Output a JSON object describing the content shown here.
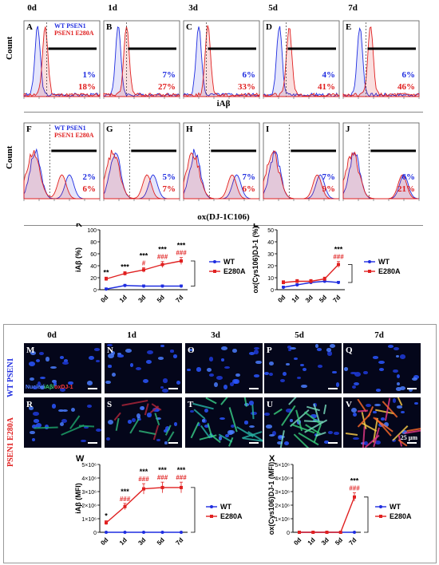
{
  "day_labels": [
    "0d",
    "1d",
    "3d",
    "5d",
    "7d"
  ],
  "flow_row1": {
    "panel_letters": [
      "A",
      "B",
      "C",
      "D",
      "E"
    ],
    "legend_wt": "WT PSEN1",
    "legend_mut": "PSEN1 E280A",
    "y_label": "Count",
    "x_label": "iAβ",
    "blue_pct": [
      "1%",
      "7%",
      "6%",
      "4%",
      "6%"
    ],
    "red_pct": [
      "18%",
      "27%",
      "33%",
      "41%",
      "46%"
    ]
  },
  "flow_row2": {
    "panel_letters": [
      "F",
      "G",
      "H",
      "I",
      "J"
    ],
    "legend_wt": "WT PSEN1",
    "legend_mut": "PSEN1 E280A",
    "y_label": "Count",
    "x_label": "ox(DJ-1C106)",
    "blue_pct": [
      "2%",
      "5%",
      "7%",
      "7%",
      "6%"
    ],
    "red_pct": [
      "6%",
      "7%",
      "6%",
      "9%",
      "21%"
    ]
  },
  "colors": {
    "wt": "#1f2de0",
    "mut": "#e02020"
  },
  "chart_data": [
    {
      "type": "line",
      "panel": "K",
      "categories": [
        "0d",
        "1d",
        "3d",
        "5d",
        "7d"
      ],
      "ylabel": "iAβ (%)",
      "ylim": [
        0,
        100
      ],
      "yticks": [
        "0",
        "20",
        "40",
        "60",
        "80",
        "100"
      ],
      "series": [
        {
          "name": "WT",
          "values": [
            1,
            7,
            6,
            6,
            6
          ]
        },
        {
          "name": "E280A",
          "values": [
            18,
            27,
            33,
            42,
            48
          ]
        }
      ],
      "annotations": {
        "stars": [
          "**",
          "***",
          "***",
          "***",
          "***"
        ],
        "hashes": [
          "",
          "",
          "#",
          "###",
          "###"
        ]
      }
    },
    {
      "type": "line",
      "panel": "L",
      "categories": [
        "0d",
        "1d",
        "3d",
        "5d",
        "7d"
      ],
      "ylabel": "ox(Cys106)DJ-1 (%)",
      "ylim": [
        0,
        50
      ],
      "yticks": [
        "0",
        "10",
        "20",
        "30",
        "40",
        "50"
      ],
      "series": [
        {
          "name": "WT",
          "values": [
            2,
            4,
            6,
            7,
            6
          ]
        },
        {
          "name": "E280A",
          "values": [
            6,
            7,
            7,
            9,
            21
          ]
        }
      ],
      "annotations": {
        "stars": [
          "",
          "",
          "",
          "",
          "***"
        ],
        "hashes": [
          "",
          "",
          "",
          "",
          "###"
        ]
      }
    },
    {
      "type": "line",
      "panel": "W",
      "categories": [
        "0d",
        "1d",
        "3d",
        "5d",
        "7d"
      ],
      "ylabel": "iAβ (MFI)",
      "ylim": [
        0,
        5000000
      ],
      "yticks": [
        "0",
        "1×10⁶",
        "2×10⁶",
        "3×10⁶",
        "4×10⁶",
        "5×10⁶"
      ],
      "series": [
        {
          "name": "WT",
          "values": [
            0,
            0,
            0,
            0,
            0
          ]
        },
        {
          "name": "E280A",
          "values": [
            700000,
            1900000,
            3200000,
            3300000,
            3300000
          ]
        }
      ],
      "annotations": {
        "stars": [
          "*",
          "***",
          "***",
          "***",
          "***"
        ],
        "hashes": [
          "",
          "###",
          "###",
          "###",
          "###"
        ]
      }
    },
    {
      "type": "line",
      "panel": "X",
      "categories": [
        "0d",
        "1d",
        "3d",
        "5d",
        "7d"
      ],
      "ylabel": "ox(Cys106)DJ-1 (MFI)",
      "ylim": [
        0,
        5000000
      ],
      "yticks": [
        "0",
        "1×10⁶",
        "2×10⁶",
        "3×10⁶",
        "4×10⁶",
        "5×10⁶"
      ],
      "series": [
        {
          "name": "WT",
          "values": [
            0,
            0,
            0,
            0,
            0
          ]
        },
        {
          "name": "E280A",
          "values": [
            0,
            0,
            0,
            0,
            2600000
          ]
        }
      ],
      "annotations": {
        "stars": [
          "",
          "",
          "",
          "",
          "***"
        ],
        "hashes": [
          "",
          "",
          "",
          "",
          "###"
        ]
      }
    }
  ],
  "legend": {
    "wt": "WT",
    "mut": "E280A"
  },
  "micro": {
    "row1_letters": [
      "M",
      "N",
      "O",
      "P",
      "Q"
    ],
    "row2_letters": [
      "R",
      "S",
      "T",
      "U",
      "V"
    ],
    "row1_side": "WT PSEN1",
    "row2_side": "PSEN1 E280A",
    "stain_nuclei": "Nuclei/",
    "stain_iab": "iAβ/",
    "stain_ox": "oxDJ-1",
    "scale": "25 μm"
  }
}
